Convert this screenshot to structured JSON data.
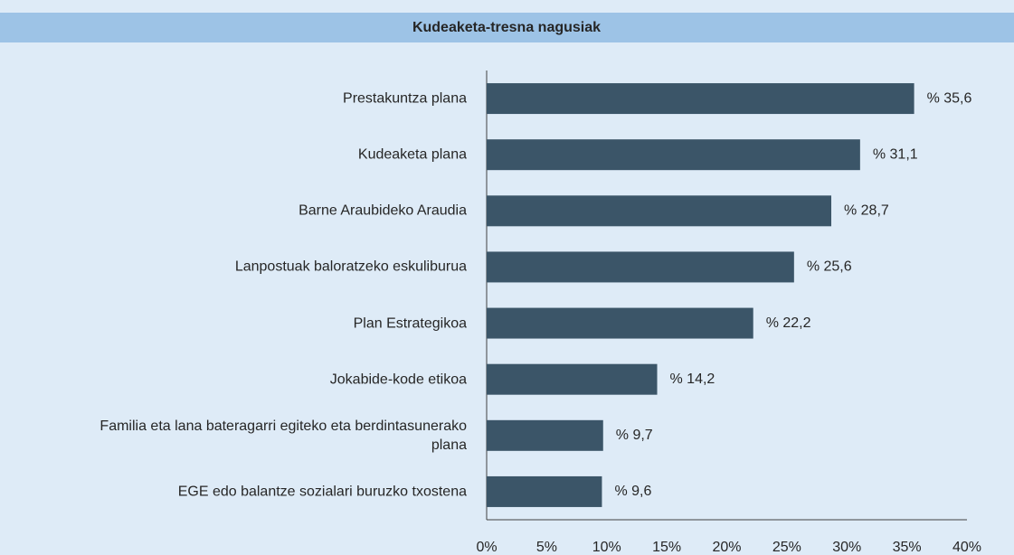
{
  "chart_data": {
    "type": "bar",
    "orientation": "horizontal",
    "title": "Kudeaketa-tresna nagusiak",
    "categories": [
      "Prestakuntza plana",
      "Kudeaketa plana",
      "Barne Araubideko Araudia",
      "Lanpostuak baloratzeko eskuliburua",
      "Plan Estrategikoa",
      "Jokabide-kode etikoa",
      "Familia eta lana bateragarri egiteko eta berdintasunerako plana",
      "EGE edo balantze sozialari buruzko txostena"
    ],
    "values": [
      35.6,
      31.1,
      28.7,
      25.6,
      22.2,
      14.2,
      9.7,
      9.6
    ],
    "value_labels": [
      "% 35,6",
      "% 31,1",
      "% 28,7",
      "% 25,6",
      "% 22,2",
      "% 14,2",
      "% 9,7",
      "% 9,6"
    ],
    "color": "#3b5568",
    "xlim": [
      0,
      40
    ],
    "xticks": [
      {
        "value": 0,
        "label": "0%"
      },
      {
        "value": 5,
        "label": "5%"
      },
      {
        "value": 10,
        "label": "10%"
      },
      {
        "value": 15,
        "label": "15%"
      },
      {
        "value": 20,
        "label": "20%"
      },
      {
        "value": 25,
        "label": "25%"
      },
      {
        "value": 30,
        "label": "30%"
      },
      {
        "value": 35,
        "label": "35%"
      },
      {
        "value": 40,
        "label": "40%"
      }
    ],
    "grid": false
  }
}
